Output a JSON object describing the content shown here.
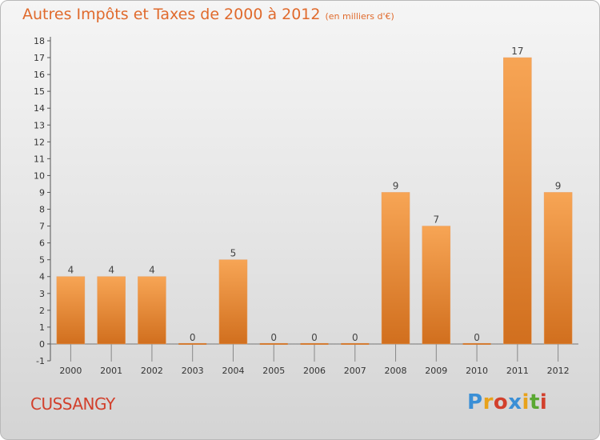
{
  "title": "Autres Impôts et Taxes de 2000 à 2012",
  "subtitle": "(en milliers d'€)",
  "commune": "CUSSANGY",
  "logo": {
    "text": "Proxiti",
    "colors": [
      "#3a8fd6",
      "#e8a21a",
      "#d2402c",
      "#3a8fd6",
      "#e8a21a",
      "#5aa832",
      "#d2402c"
    ]
  },
  "chart_data": {
    "type": "bar",
    "categories": [
      "2000",
      "2001",
      "2002",
      "2003",
      "2004",
      "2005",
      "2006",
      "2007",
      "2008",
      "2009",
      "2010",
      "2011",
      "2012"
    ],
    "values": [
      4,
      4,
      4,
      0,
      5,
      0,
      0,
      0,
      9,
      7,
      0,
      17,
      9
    ],
    "data_labels": [
      "4",
      "4",
      "4",
      "0",
      "5",
      "0",
      "0",
      "0",
      "9",
      "7",
      "0",
      "17",
      "9"
    ],
    "ylim": [
      -1,
      18
    ],
    "yticks": [
      -1,
      0,
      1,
      2,
      3,
      4,
      5,
      6,
      7,
      8,
      9,
      10,
      11,
      12,
      13,
      14,
      15,
      16,
      17,
      18
    ],
    "bar_color": "#ef8e3a",
    "grid": false
  }
}
